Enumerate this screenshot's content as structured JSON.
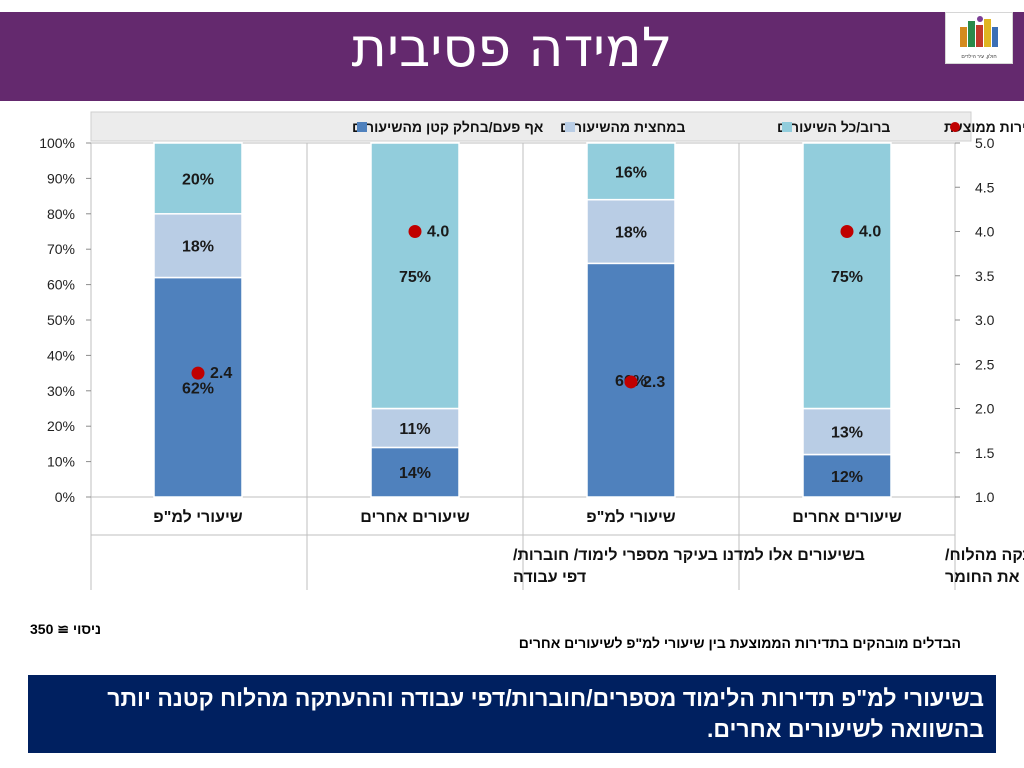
{
  "title": "למידה פסיבית",
  "logo": {
    "caption": "חולון, עיר הילדים"
  },
  "colors": {
    "banner": "#64296e",
    "seg_low": "#4f81bd",
    "seg_mid": "#b9cde5",
    "seg_high": "#92cddc",
    "avg_point": "#c00000",
    "conclusion_bg": "#002060"
  },
  "chart_data": {
    "type": "bar",
    "stacked": true,
    "percent_axis": {
      "min": 0,
      "max": 100,
      "ticks": [
        "0%",
        "10%",
        "20%",
        "30%",
        "40%",
        "50%",
        "60%",
        "70%",
        "80%",
        "90%",
        "100%"
      ]
    },
    "avg_axis": {
      "min": 1.0,
      "max": 5.0,
      "ticks": [
        "1.0",
        "1.5",
        "2.0",
        "2.5",
        "3.0",
        "3.5",
        "4.0",
        "4.5",
        "5.0"
      ]
    },
    "legend": {
      "placement": "top",
      "items": [
        {
          "key": "low",
          "label": "אף פעם/בחלק קטן מהשיעורים",
          "marker": "square",
          "color": "#4f81bd"
        },
        {
          "key": "mid",
          "label": "במחצית מהשיעורים",
          "marker": "square",
          "color": "#b9cde5"
        },
        {
          "key": "high",
          "label": "ברוב/כל השיעורים",
          "marker": "square",
          "color": "#92cddc"
        },
        {
          "key": "avg",
          "label": "תדירות ממוצעת",
          "marker": "circle",
          "color": "#c00000"
        }
      ]
    },
    "categories": [
      "שיעורי למ\"פ",
      "שיעורים אחרים",
      "שיעורי למ\"פ",
      "שיעורים אחרים"
    ],
    "groups": [
      {
        "label": "בשיעורים אלו למדנו בעיקר מספרי לימוד/ חוברות/ דפי עבודה",
        "label_lines": [
          "בשיעורים אלו למדנו בעיקר מספרי לימוד/ חוברות/",
          "דפי עבודה"
        ]
      },
      {
        "label": "במהלך שעורים אלו היינו עסוקים בהעתקה מהלוח/ המורה הכתיב/ה לנו את החומר",
        "label_lines": [
          "במהלך שעורים אלו היינו עסוקים בהעתקה מהלוח/",
          "המורה הכתיב/ה לנו את החומר"
        ]
      }
    ],
    "series": [
      {
        "key": "low",
        "values": [
          62,
          14,
          66,
          12
        ],
        "labels": [
          "62%",
          "14%",
          "66%",
          "12%"
        ]
      },
      {
        "key": "mid",
        "values": [
          18,
          11,
          18,
          13
        ],
        "labels": [
          "18%",
          "11%",
          "18%",
          "13%"
        ]
      },
      {
        "key": "high",
        "values": [
          20,
          75,
          16,
          75
        ],
        "labels": [
          "20%",
          "75%",
          "16%",
          "75%"
        ]
      }
    ],
    "averages": {
      "values": [
        2.4,
        4.0,
        2.3,
        4.0
      ],
      "labels": [
        "2.4",
        "4.0",
        "2.3",
        "4.0"
      ]
    },
    "grid": false
  },
  "notes": {
    "sample": "ניסוי ≅ 350",
    "differences": "הבדלים מובהקים בתדירות הממוצעת  בין שיעורי למ\"פ לשיעורים אחרים"
  },
  "conclusion": "בשיעורי למ\"פ תדירות הלימוד מספרים/חוברות/דפי עבודה וההעתקה מהלוח קטנה יותר בהשוואה לשיעורים אחרים."
}
